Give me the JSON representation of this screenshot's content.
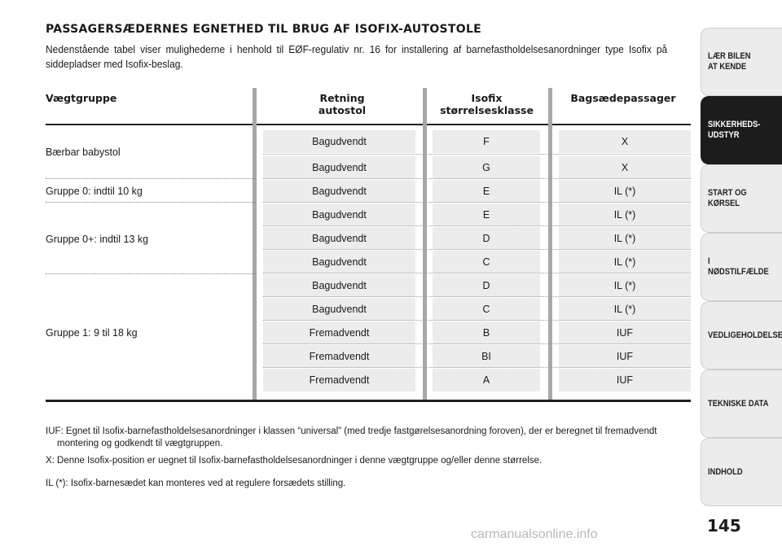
{
  "title": "PASSAGERSÆDERNES EGNETHED TIL BRUG AF ISOFIX-AUTOSTOLE",
  "intro": "Nedenstående tabel viser mulighederne i henhold til EØF-regulativ nr. 16 for installering af barnefastholdelsesanordninger type Isofix på siddepladser med Isofix-beslag.",
  "table": {
    "headers": {
      "weight": "Vægtgruppe",
      "direction_1": "Retning",
      "direction_2": "autostol",
      "size_1": "Isofix",
      "size_2": "størrelsesklasse",
      "passenger": "Bagsædepassager"
    },
    "groups": [
      "Bærbar babystol",
      "Gruppe 0: indtil 10 kg",
      "Gruppe 0+: indtil 13 kg",
      "Gruppe 1: 9 til 18 kg"
    ],
    "rows": [
      {
        "direction": "Bagudvendt",
        "size": "F",
        "passenger": "X"
      },
      {
        "direction": "Bagudvendt",
        "size": "G",
        "passenger": "X"
      },
      {
        "direction": "Bagudvendt",
        "size": "E",
        "passenger": "IL (*)"
      },
      {
        "direction": "Bagudvendt",
        "size": "E",
        "passenger": "IL (*)"
      },
      {
        "direction": "Bagudvendt",
        "size": "D",
        "passenger": "IL (*)"
      },
      {
        "direction": "Bagudvendt",
        "size": "C",
        "passenger": "IL (*)"
      },
      {
        "direction": "Bagudvendt",
        "size": "D",
        "passenger": "IL (*)"
      },
      {
        "direction": "Bagudvendt",
        "size": "C",
        "passenger": "IL (*)"
      },
      {
        "direction": "Fremadvendt",
        "size": "B",
        "passenger": "IUF"
      },
      {
        "direction": "Fremadvendt",
        "size": "BI",
        "passenger": "IUF"
      },
      {
        "direction": "Fremadvendt",
        "size": "A",
        "passenger": "IUF"
      }
    ]
  },
  "notes": {
    "iuf_1": "IUF: Egnet til Isofix-barnefastholdelsesanordninger i klassen “universal” (med tredje fastgørelsesanordning foroven), der er beregnet til fremadvendt",
    "iuf_2": "montering og godkendt til vægtgruppen.",
    "x": "X: Denne Isofix-position er uegnet til Isofix-barnefastholdelsesanordninger i denne vægtgruppe og/eller denne størrelse.",
    "il": "IL (*): Isofix-barnesædet kan monteres ved at regulere forsædets stilling."
  },
  "side_tabs": [
    {
      "label": "LÆR BILEN\nAT KENDE",
      "active": false
    },
    {
      "label": "SIKKERHEDS-\nUDSTYR",
      "active": true
    },
    {
      "label": "START OG KØRSEL",
      "active": false
    },
    {
      "label": "I NØDSTILFÆLDE",
      "active": false
    },
    {
      "label": "VEDLIGEHOLDELSE",
      "active": false
    },
    {
      "label": "TEKNISKE DATA",
      "active": false
    },
    {
      "label": "INDHOLD",
      "active": false
    }
  ],
  "page_number": "145",
  "watermark": "carmanualsonline.info"
}
